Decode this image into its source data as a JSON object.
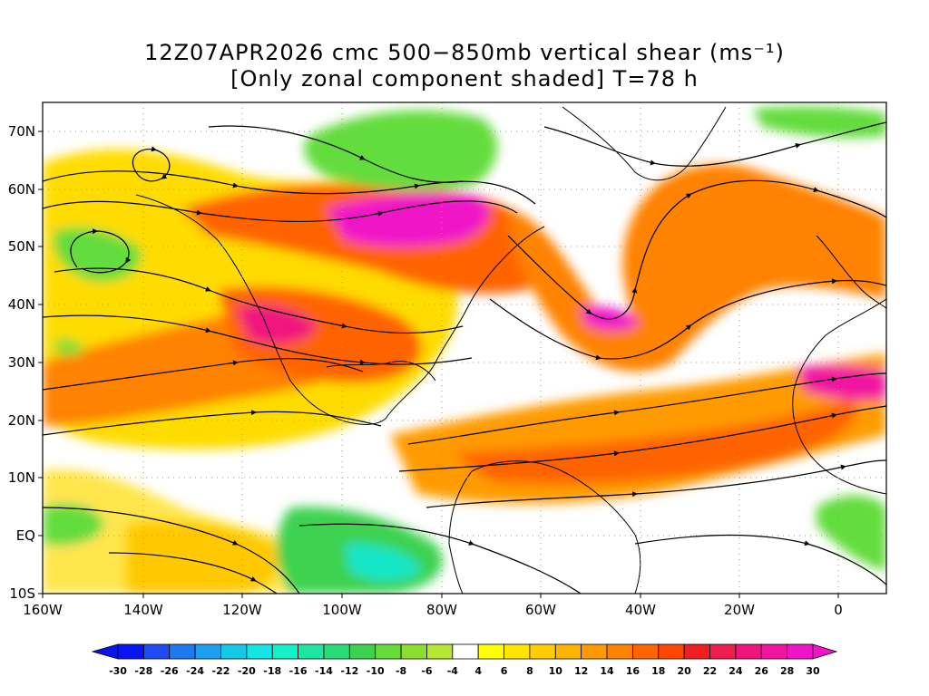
{
  "title_line1": "12Z07APR2026 cmc 500−850mb vertical shear (ms⁻¹)",
  "title_line2": "[Only zonal component shaded] T=78 h",
  "lat_ticks": [
    "70N",
    "60N",
    "50N",
    "40N",
    "30N",
    "20N",
    "10N",
    "EQ",
    "10S"
  ],
  "lon_ticks": [
    "160W",
    "140W",
    "120W",
    "100W",
    "80W",
    "60W",
    "40W",
    "20W",
    "0"
  ],
  "map_extent": {
    "lon_min": -160,
    "lon_max": 10,
    "lat_min": -10,
    "lat_max": 75
  },
  "colorbar": {
    "labels": [
      "-30",
      "-28",
      "-26",
      "-24",
      "-22",
      "-20",
      "-18",
      "-16",
      "-14",
      "-12",
      "-10",
      "-8",
      "-6",
      "-4",
      "4",
      "6",
      "8",
      "10",
      "12",
      "14",
      "16",
      "18",
      "20",
      "22",
      "24",
      "26",
      "28",
      "30"
    ],
    "colors": [
      "#0a14f0",
      "#1e4bf5",
      "#1e78f0",
      "#1ea0f0",
      "#14c8e6",
      "#14e6e6",
      "#14f0c8",
      "#1ee6a0",
      "#28dc78",
      "#3cd250",
      "#64dc3c",
      "#8cdc32",
      "#b4e632",
      "#ffffff",
      "#ffff00",
      "#ffe600",
      "#ffcd00",
      "#ffb400",
      "#ff9b00",
      "#ff8200",
      "#ff6400",
      "#ff4600",
      "#f01e1e",
      "#f01e50",
      "#f0147d",
      "#f014a0",
      "#f014c8"
    ]
  },
  "shade_palette": {
    "light": "#ffdc00",
    "mid": "#ff9b00",
    "strong": "#ff6400",
    "max": "#f014c8",
    "neg": "#64dc3c",
    "neg_strong": "#14e6c8"
  }
}
